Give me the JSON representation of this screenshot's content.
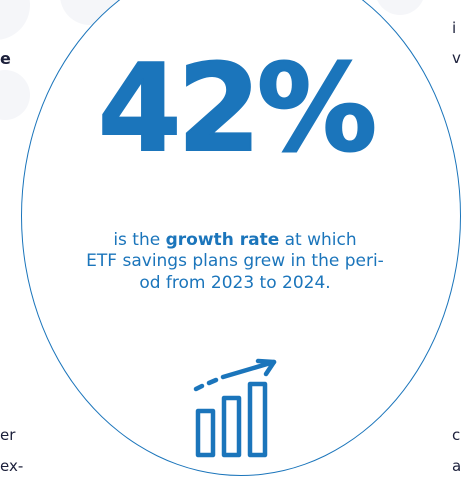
{
  "statistic": {
    "value": "42%",
    "description_before": "is the ",
    "description_emphasis": "growth rate",
    "description_after": " at which ETF savings plans grew in the peri-od from 2023 to 2024.",
    "line1_pre": "is the ",
    "line1_bold": "growth rate",
    "line1_post": " at which",
    "line2": "ETF savings plans grew in the peri-",
    "line3": "od from 2023 to 2024."
  },
  "adjacent_text": {
    "left_heading_fragment": "e",
    "left_line1_fragment": "er",
    "left_line2_fragment": "ex-",
    "right_line1_fragment": "i",
    "right_line2_fragment": "v",
    "right_line3_fragment": "c",
    "right_line4_fragment": "a"
  },
  "icons": {
    "growth_chart": "bar-chart-growth-icon"
  },
  "colors": {
    "accent": "#1b75bb",
    "text_dark": "#1b1f3a",
    "background_blob": "#f5f6f9"
  }
}
